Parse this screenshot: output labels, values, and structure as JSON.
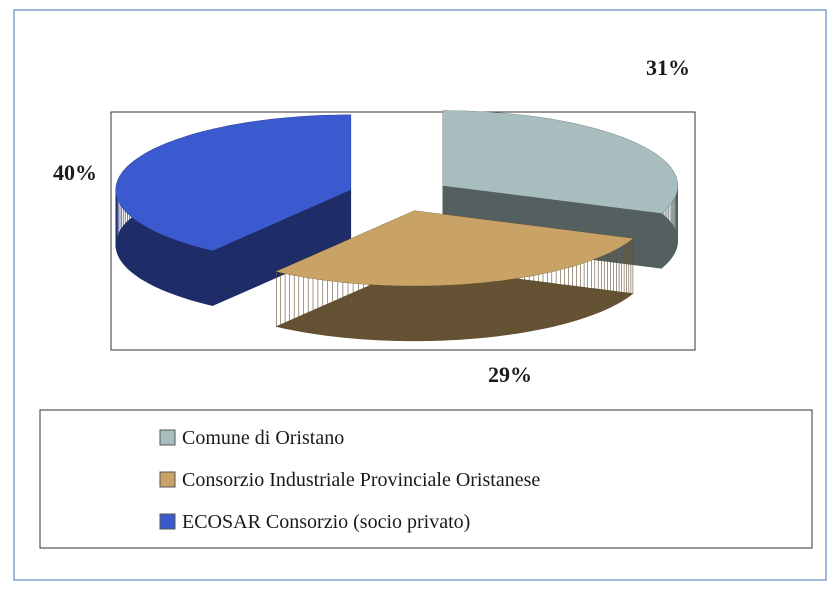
{
  "chart_data": {
    "type": "pie",
    "categories": [
      "Comune di Oristano",
      "Consorzio Industriale Provinciale Oristanese",
      "ECOSAR Consorzio (socio privato)"
    ],
    "values": [
      31,
      29,
      40
    ],
    "value_labels": [
      "31%",
      "29%",
      "40%"
    ],
    "colors": [
      "#a8bebe",
      "#c9a266",
      "#3c5ad0"
    ]
  }
}
